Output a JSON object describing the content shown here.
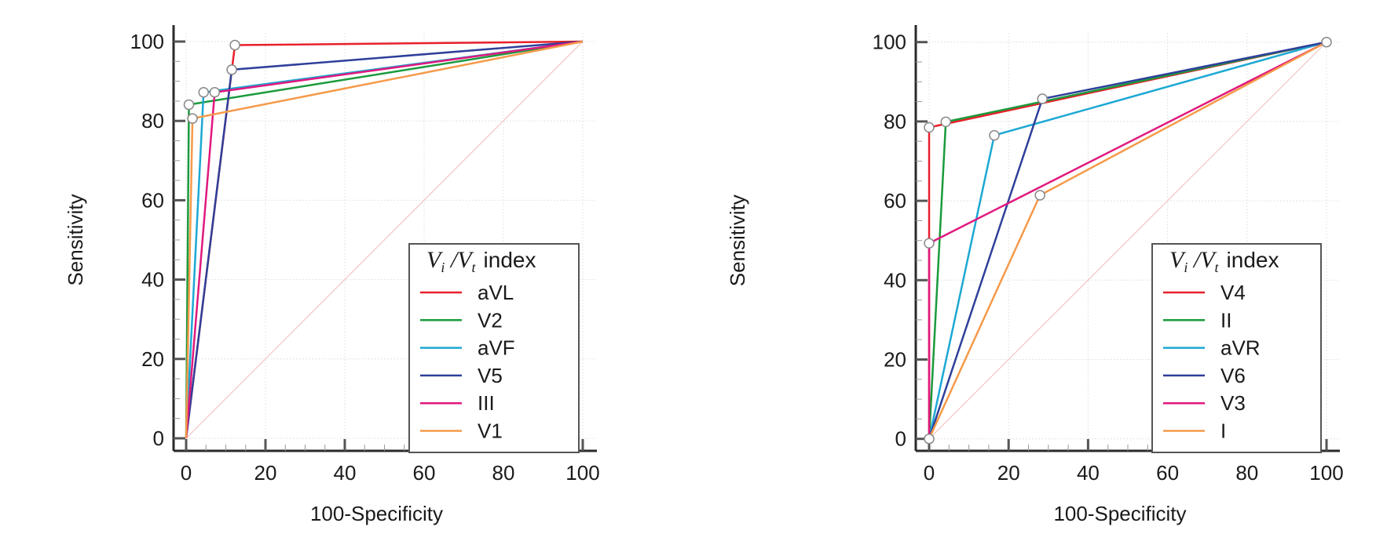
{
  "chart_data": [
    {
      "type": "line",
      "title": "",
      "xlabel": "100-Specificity",
      "ylabel": "Sensitivity",
      "xlim": [
        0,
        100
      ],
      "ylim": [
        0,
        100
      ],
      "xticks": [
        "0",
        "20",
        "40",
        "60",
        "80",
        "100"
      ],
      "yticks": [
        "0",
        "20",
        "40",
        "60",
        "80",
        "100"
      ],
      "grid": true,
      "diagonal_reference": true,
      "legend": {
        "title_main": "V",
        "title_sub_i": "i",
        "title_sep": " /",
        "title_main2": "V",
        "title_sub_t": "t",
        "title_suffix": "index",
        "placement": "bottom-right"
      },
      "series": [
        {
          "name": "aVL",
          "color": "#e8202a",
          "points": [
            [
              0,
              0
            ],
            [
              12.3,
              99.1
            ],
            [
              100,
              100
            ]
          ]
        },
        {
          "name": "V2",
          "color": "#1a9a3c",
          "points": [
            [
              0,
              0
            ],
            [
              0.7,
              84.1
            ],
            [
              100,
              100
            ]
          ]
        },
        {
          "name": "aVF",
          "color": "#1ca8d4",
          "points": [
            [
              0,
              0
            ],
            [
              4.4,
              87.2
            ],
            [
              100,
              100
            ]
          ]
        },
        {
          "name": "V5",
          "color": "#2e3f9a",
          "points": [
            [
              0,
              0
            ],
            [
              11.5,
              92.9
            ],
            [
              100,
              100
            ]
          ]
        },
        {
          "name": "III",
          "color": "#e0187e",
          "points": [
            [
              0,
              0
            ],
            [
              7.2,
              87.2
            ],
            [
              100,
              100
            ]
          ]
        },
        {
          "name": "V1",
          "color": "#f59a4a",
          "points": [
            [
              0,
              0
            ],
            [
              1.6,
              80.6
            ],
            [
              100,
              100
            ]
          ]
        }
      ]
    },
    {
      "type": "line",
      "title": "",
      "xlabel": "100-Specificity",
      "ylabel": "Sensitivity",
      "xlim": [
        0,
        100
      ],
      "ylim": [
        0,
        100
      ],
      "xticks": [
        "0",
        "20",
        "40",
        "60",
        "80",
        "100"
      ],
      "yticks": [
        "0",
        "20",
        "40",
        "60",
        "80",
        "100"
      ],
      "grid": true,
      "diagonal_reference": true,
      "legend": {
        "title_main": "V",
        "title_sub_i": "i",
        "title_sep": " /",
        "title_main2": "V",
        "title_sub_t": "t",
        "title_suffix": "index",
        "placement": "bottom-right"
      },
      "series": [
        {
          "name": "V4",
          "color": "#e8202a",
          "points": [
            [
              0,
              0
            ],
            [
              0,
              78.5
            ],
            [
              100,
              100
            ]
          ]
        },
        {
          "name": "II",
          "color": "#1a9a3c",
          "points": [
            [
              0,
              0
            ],
            [
              4.2,
              79.9
            ],
            [
              100,
              100
            ]
          ]
        },
        {
          "name": "aVR",
          "color": "#1ca8d4",
          "points": [
            [
              0,
              0
            ],
            [
              16.4,
              76.5
            ],
            [
              100,
              100
            ]
          ]
        },
        {
          "name": "V6",
          "color": "#2e3f9a",
          "points": [
            [
              0,
              0
            ],
            [
              28.5,
              85.7
            ],
            [
              100,
              100
            ]
          ]
        },
        {
          "name": "V3",
          "color": "#e0187e",
          "points": [
            [
              0,
              0
            ],
            [
              0,
              49.3
            ],
            [
              100,
              100
            ]
          ]
        },
        {
          "name": "I",
          "color": "#f59a4a",
          "points": [
            [
              0,
              0
            ],
            [
              27.9,
              61.4
            ],
            [
              100,
              100
            ]
          ]
        }
      ]
    }
  ]
}
